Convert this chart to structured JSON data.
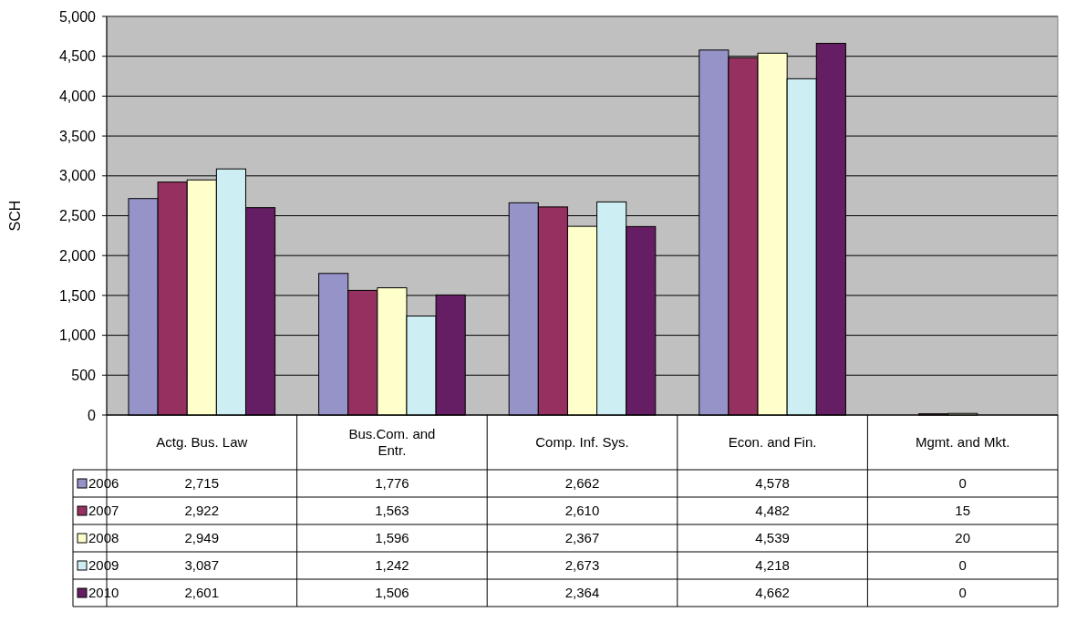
{
  "chart_data": {
    "type": "bar",
    "ylabel": "SCH",
    "categories": [
      "Actg. Bus. Law",
      "Bus.Com. and Entr.",
      "Comp. Inf. Sys.",
      "Econ. and Fin.",
      "Mgmt. and Mkt."
    ],
    "series": [
      {
        "name": "2006",
        "color": "#9593c8",
        "values": [
          2715,
          1776,
          2662,
          4578,
          0
        ],
        "value_labels": [
          "2,715",
          "1,776",
          "2,662",
          "4,578",
          "0"
        ]
      },
      {
        "name": "2007",
        "color": "#963060",
        "values": [
          2922,
          1563,
          2610,
          4482,
          15
        ],
        "value_labels": [
          "2,922",
          "1,563",
          "2,610",
          "4,482",
          "15"
        ]
      },
      {
        "name": "2008",
        "color": "#ffffcc",
        "values": [
          2949,
          1596,
          2367,
          4539,
          20
        ],
        "value_labels": [
          "2,949",
          "1,596",
          "2,367",
          "4,539",
          "20"
        ]
      },
      {
        "name": "2009",
        "color": "#cdeef2",
        "values": [
          3087,
          1242,
          2673,
          4218,
          0
        ],
        "value_labels": [
          "3,087",
          "1,242",
          "2,673",
          "4,218",
          "0"
        ]
      },
      {
        "name": "2010",
        "color": "#651d63",
        "values": [
          2601,
          1506,
          2364,
          4662,
          0
        ],
        "value_labels": [
          "2,601",
          "1,506",
          "2,364",
          "4,662",
          "0"
        ]
      }
    ],
    "ylim": [
      0,
      5000
    ],
    "yticks": [
      {
        "value": 0,
        "label": "0"
      },
      {
        "value": 500,
        "label": "500"
      },
      {
        "value": 1000,
        "label": "1,000"
      },
      {
        "value": 1500,
        "label": "1,500"
      },
      {
        "value": 2000,
        "label": "2,000"
      },
      {
        "value": 2500,
        "label": "2,500"
      },
      {
        "value": 3000,
        "label": "3,000"
      },
      {
        "value": 3500,
        "label": "3,500"
      },
      {
        "value": 4000,
        "label": "4,000"
      },
      {
        "value": 4500,
        "label": "4,500"
      },
      {
        "value": 5000,
        "label": "5,000"
      }
    ],
    "grid": "y",
    "legend": "bottom left"
  }
}
